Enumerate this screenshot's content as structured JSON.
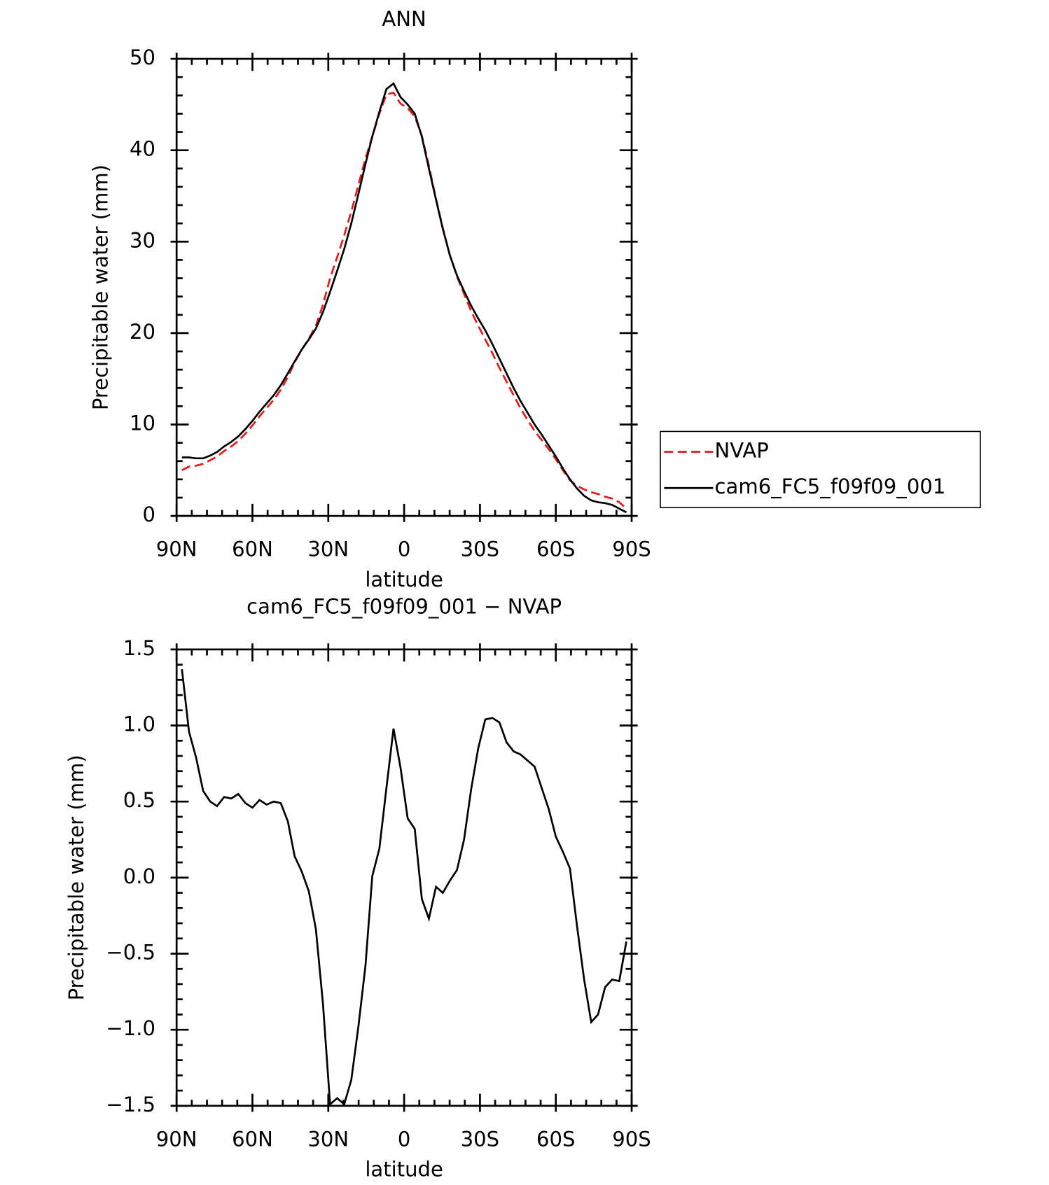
{
  "chart_data": [
    {
      "type": "line",
      "title": "ANN",
      "xlabel": "latitude",
      "ylabel": "Precipitable water (mm)",
      "x": [
        87.9,
        85.1,
        82.3,
        79.5,
        76.7,
        74.0,
        71.2,
        68.4,
        65.6,
        62.8,
        60.0,
        57.2,
        54.4,
        51.6,
        48.8,
        46.0,
        43.3,
        40.5,
        37.7,
        34.9,
        32.1,
        29.3,
        26.5,
        23.7,
        20.9,
        18.1,
        15.3,
        12.6,
        9.8,
        7.0,
        4.2,
        1.4,
        -1.4,
        -4.2,
        -7.0,
        -9.8,
        -12.6,
        -15.3,
        -18.1,
        -20.9,
        -23.7,
        -26.5,
        -29.3,
        -32.1,
        -34.9,
        -37.7,
        -40.5,
        -43.3,
        -46.0,
        -48.8,
        -51.6,
        -54.4,
        -57.2,
        -60.0,
        -62.8,
        -65.6,
        -68.4,
        -71.2,
        -74.0,
        -76.7,
        -79.5,
        -82.3,
        -85.1,
        -87.9
      ],
      "series": [
        {
          "name": "NVAP",
          "color": "#e8191b",
          "dashed": true,
          "values": [
            5.0,
            5.4,
            5.5,
            5.7,
            6.1,
            6.5,
            7.1,
            7.6,
            8.2,
            9.0,
            9.9,
            10.9,
            11.8,
            12.7,
            13.8,
            15.2,
            16.8,
            18.2,
            19.4,
            20.8,
            23.1,
            26.0,
            28.3,
            30.7,
            33.3,
            36.2,
            39.1,
            41.5,
            44.0,
            46.1,
            46.3,
            45.1,
            44.6,
            43.7,
            41.6,
            38.3,
            34.7,
            31.5,
            28.5,
            26.2,
            24.3,
            22.4,
            20.8,
            19.3,
            17.8,
            16.2,
            14.7,
            13.2,
            11.8,
            10.5,
            9.3,
            8.3,
            7.3,
            6.2,
            5.0,
            3.9,
            3.3,
            2.9,
            2.6,
            2.4,
            2.1,
            1.9,
            1.5,
            0.8
          ]
        },
        {
          "name": "cam6_FC5_f09f09_001",
          "color": "#000000",
          "dashed": false,
          "values": [
            6.4,
            6.4,
            6.3,
            6.3,
            6.6,
            7.0,
            7.6,
            8.1,
            8.7,
            9.5,
            10.4,
            11.4,
            12.3,
            13.2,
            14.3,
            15.6,
            16.9,
            18.2,
            19.3,
            20.5,
            22.3,
            24.5,
            26.8,
            29.2,
            32.0,
            35.2,
            38.5,
            41.5,
            44.2,
            46.7,
            47.3,
            45.8,
            45.0,
            44.0,
            41.5,
            38.0,
            34.6,
            31.4,
            28.5,
            26.3,
            24.6,
            23.0,
            21.6,
            20.3,
            18.8,
            17.2,
            15.6,
            14.0,
            12.6,
            11.3,
            10.0,
            8.9,
            7.7,
            6.5,
            5.2,
            4.0,
            3.0,
            2.2,
            1.7,
            1.5,
            1.4,
            1.2,
            0.8,
            0.4
          ]
        }
      ],
      "xlim": [
        90,
        -90
      ],
      "xticks": [
        {
          "value": 90,
          "label": "90N"
        },
        {
          "value": 60,
          "label": "60N"
        },
        {
          "value": 30,
          "label": "30N"
        },
        0,
        {
          "value": -30,
          "label": "30S"
        },
        {
          "value": -60,
          "label": "60S"
        },
        {
          "value": -90,
          "label": "90S"
        }
      ],
      "ylim": [
        0,
        50
      ],
      "yticks": [
        0,
        10,
        20,
        30,
        40,
        50
      ],
      "legend": "right"
    },
    {
      "type": "line",
      "title": "cam6_FC5_f09f09_001 − NVAP",
      "xlabel": "latitude",
      "ylabel": "Precipitable water (mm)",
      "x": [
        87.9,
        85.1,
        82.3,
        79.5,
        76.7,
        74.0,
        71.2,
        68.4,
        65.6,
        62.8,
        60.0,
        57.2,
        54.4,
        51.6,
        48.8,
        46.0,
        43.3,
        40.5,
        37.7,
        34.9,
        32.1,
        29.3,
        26.5,
        23.7,
        20.9,
        18.1,
        15.3,
        12.6,
        9.8,
        7.0,
        4.2,
        1.4,
        -1.4,
        -4.2,
        -7.0,
        -9.8,
        -12.6,
        -15.3,
        -18.1,
        -20.9,
        -23.7,
        -26.5,
        -29.3,
        -32.1,
        -34.9,
        -37.7,
        -40.5,
        -43.3,
        -46.0,
        -48.8,
        -51.6,
        -54.4,
        -57.2,
        -60.0,
        -62.8,
        -65.6,
        -68.4,
        -71.2,
        -74.0,
        -76.7,
        -79.5,
        -82.3,
        -85.1,
        -87.9
      ],
      "series": [
        {
          "color": "#000000",
          "dashed": false,
          "values": [
            1.37,
            0.96,
            0.79,
            0.57,
            0.5,
            0.47,
            0.53,
            0.52,
            0.55,
            0.49,
            0.46,
            0.51,
            0.48,
            0.5,
            0.49,
            0.37,
            0.14,
            0.04,
            -0.09,
            -0.34,
            -0.83,
            -1.49,
            -1.45,
            -1.49,
            -1.33,
            -0.98,
            -0.58,
            0.01,
            0.19,
            0.59,
            0.98,
            0.72,
            0.39,
            0.32,
            -0.14,
            -0.27,
            -0.06,
            -0.1,
            -0.02,
            0.05,
            0.25,
            0.58,
            0.85,
            1.04,
            1.05,
            1.02,
            0.89,
            0.83,
            0.81,
            0.77,
            0.73,
            0.59,
            0.45,
            0.27,
            0.17,
            0.06,
            -0.32,
            -0.67,
            -0.95,
            -0.9,
            -0.72,
            -0.67,
            -0.68,
            -0.42
          ]
        }
      ],
      "xlim": [
        90,
        -90
      ],
      "xticks": [
        {
          "value": 90,
          "label": "90N"
        },
        {
          "value": 60,
          "label": "60N"
        },
        {
          "value": 30,
          "label": "30N"
        },
        0,
        {
          "value": -30,
          "label": "30S"
        },
        {
          "value": -60,
          "label": "60S"
        },
        {
          "value": -90,
          "label": "90S"
        }
      ],
      "ylim": [
        -1.5,
        1.5
      ],
      "yticks": [
        {
          "value": -1.5,
          "label": "−1.5"
        },
        {
          "value": -1,
          "label": "−1.0"
        },
        {
          "value": -0.5,
          "label": "−0.5"
        },
        {
          "value": 0,
          "label": "0.0"
        },
        0.5,
        {
          "value": 1,
          "label": "1.0"
        },
        1.5
      ]
    }
  ]
}
